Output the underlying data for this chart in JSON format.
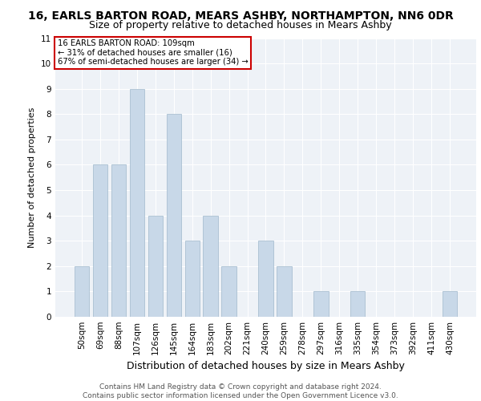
{
  "title1": "16, EARLS BARTON ROAD, MEARS ASHBY, NORTHAMPTON, NN6 0DR",
  "title2": "Size of property relative to detached houses in Mears Ashby",
  "xlabel": "Distribution of detached houses by size in Mears Ashby",
  "ylabel": "Number of detached properties",
  "categories": [
    "50sqm",
    "69sqm",
    "88sqm",
    "107sqm",
    "126sqm",
    "145sqm",
    "164sqm",
    "183sqm",
    "202sqm",
    "221sqm",
    "240sqm",
    "259sqm",
    "278sqm",
    "297sqm",
    "316sqm",
    "335sqm",
    "354sqm",
    "373sqm",
    "392sqm",
    "411sqm",
    "430sqm"
  ],
  "values": [
    2,
    6,
    6,
    9,
    4,
    8,
    3,
    4,
    2,
    0,
    3,
    2,
    0,
    1,
    0,
    1,
    0,
    0,
    0,
    0,
    1
  ],
  "bar_color": "#c8d8e8",
  "bar_edge_color": "#a0b8cc",
  "annotation_box_text": "16 EARLS BARTON ROAD: 109sqm\n← 31% of detached houses are smaller (16)\n67% of semi-detached houses are larger (34) →",
  "annotation_box_color": "#ffffff",
  "annotation_box_edge_color": "#cc0000",
  "ylim": [
    0,
    11
  ],
  "yticks": [
    0,
    1,
    2,
    3,
    4,
    5,
    6,
    7,
    8,
    9,
    10,
    11
  ],
  "background_color": "#eef2f7",
  "footer_text": "Contains HM Land Registry data © Crown copyright and database right 2024.\nContains public sector information licensed under the Open Government Licence v3.0.",
  "title1_fontsize": 10,
  "title2_fontsize": 9,
  "xlabel_fontsize": 9,
  "ylabel_fontsize": 8,
  "tick_fontsize": 7.5,
  "footer_fontsize": 6.5
}
